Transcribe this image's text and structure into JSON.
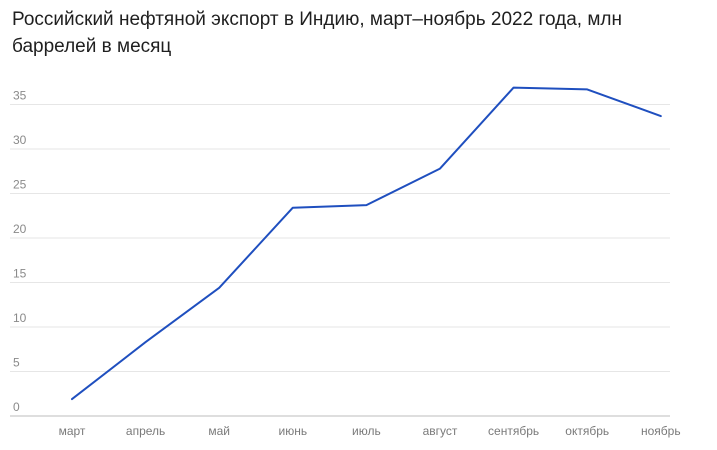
{
  "chart_data": {
    "type": "line",
    "title": "Российский нефтяной экспорт в Индию, март–ноябрь 2022 года, млн баррелей в месяц",
    "xlabel": "",
    "ylabel": "",
    "categories": [
      "март",
      "апрель",
      "май",
      "июнь",
      "июль",
      "август",
      "сентябрь",
      "октябрь",
      "ноябрь"
    ],
    "series": [
      {
        "values": [
          1.9,
          8.3,
          14.4,
          23.4,
          23.7,
          27.8,
          36.9,
          36.7,
          33.7
        ]
      }
    ],
    "ylim": [
      0,
      37
    ],
    "yticks": [
      0,
      5,
      10,
      15,
      20,
      25,
      30,
      35
    ],
    "grid": true,
    "legend": "none",
    "line_color": "#1f4fbf"
  }
}
